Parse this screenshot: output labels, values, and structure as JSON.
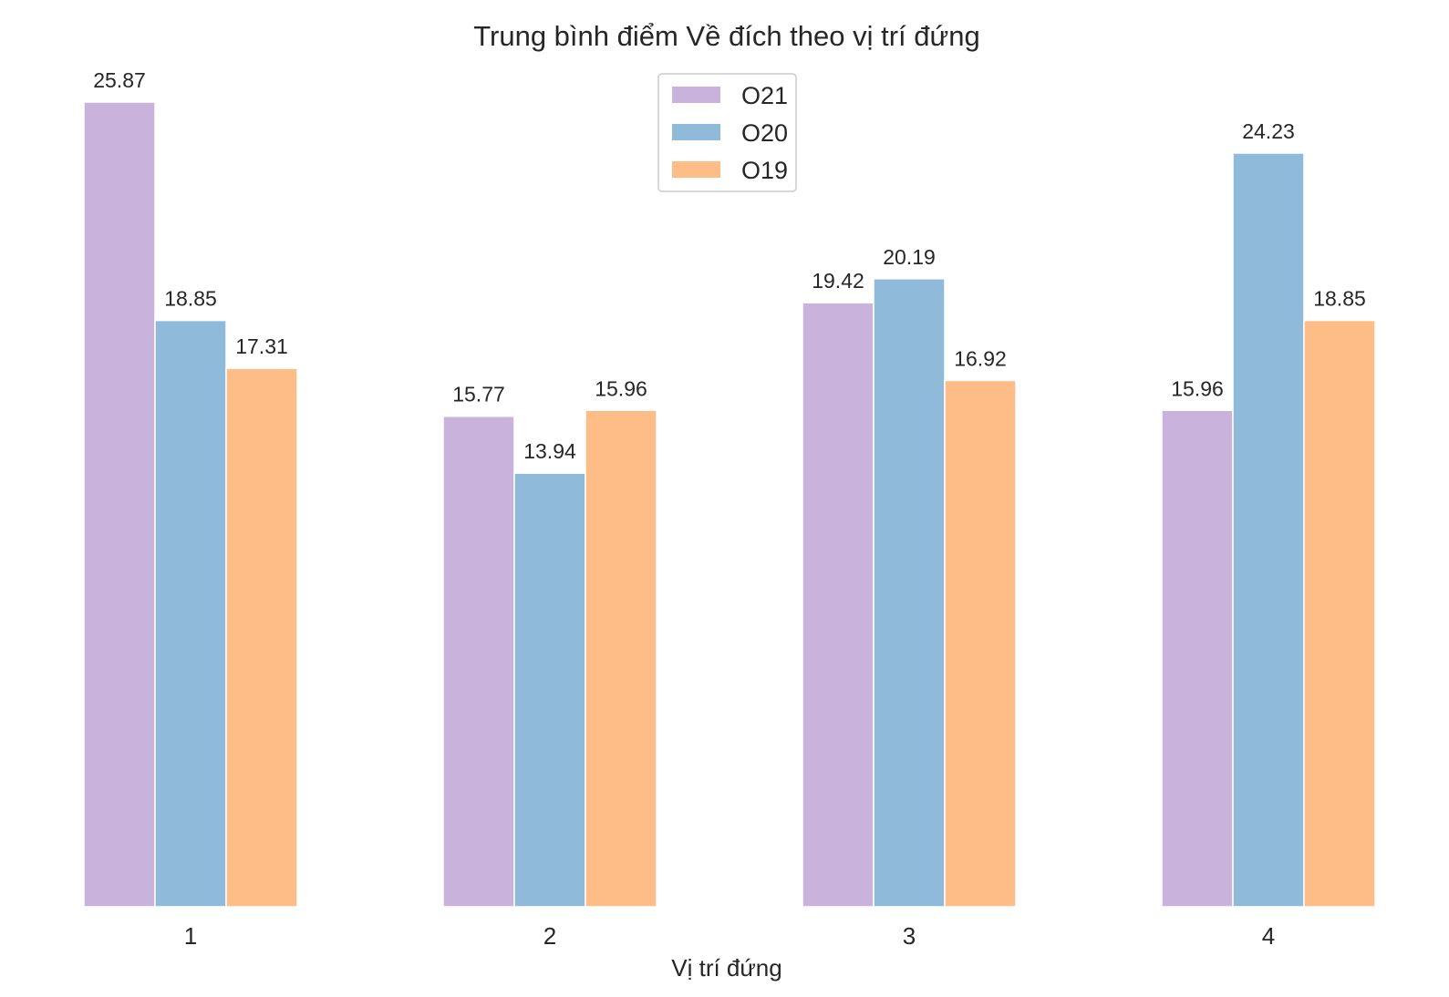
{
  "chart_data": {
    "type": "bar",
    "title": "Trung bình điểm Về đích theo vị trí đứng",
    "xlabel": "Vị trí đứng",
    "ylabel": "",
    "categories": [
      "1",
      "2",
      "3",
      "4"
    ],
    "series": [
      {
        "name": "O21",
        "color": "#c9b3dd",
        "values": [
          25.87,
          15.77,
          19.42,
          15.96
        ],
        "labels": [
          "25.87",
          "15.77",
          "19.42",
          "15.96"
        ]
      },
      {
        "name": "O20",
        "color": "#8fbad9",
        "values": [
          18.85,
          13.94,
          20.19,
          24.23
        ],
        "labels": [
          "18.85",
          "13.94",
          "20.19",
          "24.23"
        ]
      },
      {
        "name": "O19",
        "color": "#febc87",
        "values": [
          17.31,
          15.96,
          16.92,
          18.85
        ],
        "labels": [
          "17.31",
          "15.96",
          "16.92",
          "18.85"
        ]
      }
    ],
    "ylim": [
      0,
      25.87
    ],
    "grid": false,
    "legend_position": "top-center"
  }
}
